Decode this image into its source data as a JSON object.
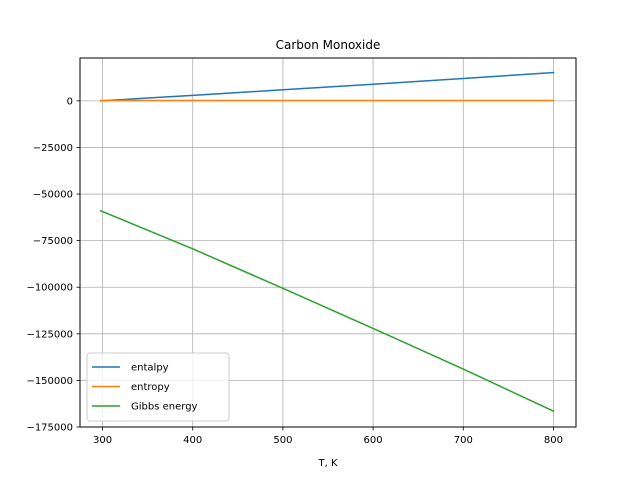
{
  "chart_data": {
    "type": "line",
    "title": "Carbon Monoxide",
    "xlabel": "T, K",
    "ylabel": "",
    "xlim": [
      275,
      825
    ],
    "ylim": [
      -175000,
      23000
    ],
    "xticks": [
      300,
      400,
      500,
      600,
      700,
      800
    ],
    "yticks": [
      0,
      -25000,
      -50000,
      -75000,
      -100000,
      -125000,
      -150000,
      -175000
    ],
    "xtick_labels": [
      "300",
      "400",
      "500",
      "600",
      "700",
      "800"
    ],
    "ytick_labels": [
      "0",
      "−25000",
      "−50000",
      "−75000",
      "−100000",
      "−125000",
      "−150000",
      "−175000"
    ],
    "grid": true,
    "legend_position": "lower-left",
    "series": [
      {
        "name": "entalpy",
        "color": "#1f77b4",
        "x": [
          298,
          400,
          500,
          600,
          700,
          800
        ],
        "y": [
          0,
          2976,
          5931,
          8942,
          12023,
          15177
        ]
      },
      {
        "name": "entropy",
        "color": "#ff7f0e",
        "x": [
          298,
          400,
          500,
          600,
          700,
          800
        ],
        "y": [
          198,
          206,
          212,
          218,
          222,
          226
        ]
      },
      {
        "name": "Gibbs energy",
        "color": "#2ca02c",
        "x": [
          298,
          400,
          500,
          600,
          700,
          800
        ],
        "y": [
          -59000,
          -79400,
          -100600,
          -122100,
          -143900,
          -166500
        ]
      }
    ]
  }
}
